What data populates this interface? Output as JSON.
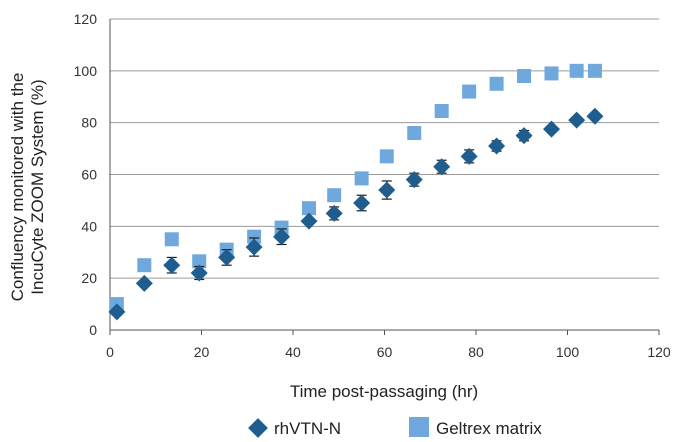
{
  "chart_data": {
    "type": "scatter",
    "xlabel": "Time post-passaging (hr)",
    "ylabel_lines": [
      "Confluency monitored with the",
      "IncuCyte ZOOM System (%)"
    ],
    "xlim": [
      0,
      120
    ],
    "ylim": [
      0,
      120
    ],
    "x_ticks": [
      "0",
      "20",
      "40",
      "60",
      "80",
      "100",
      "120"
    ],
    "y_ticks": [
      "0",
      "20",
      "40",
      "60",
      "80",
      "100",
      "120"
    ],
    "grid": "horizontal",
    "legend_position": "bottom",
    "series": [
      {
        "name": "rhVTN-N",
        "marker": "diamond",
        "color": "#1f5d8e",
        "x": [
          1.5,
          7.5,
          13.5,
          19.5,
          25.5,
          31.5,
          37.5,
          43.5,
          49,
          55,
          60.5,
          66.5,
          72.5,
          78.5,
          84.5,
          90.5,
          96.5,
          102,
          106
        ],
        "y": [
          7,
          18,
          25,
          22,
          28,
          32,
          36,
          42,
          45,
          49,
          54,
          58,
          63,
          67,
          71,
          75,
          77.5,
          81,
          82.5
        ],
        "error": [
          0,
          0,
          3,
          2.5,
          3,
          3.5,
          3,
          0,
          2.5,
          3,
          3.5,
          2.5,
          2.5,
          2.5,
          2,
          2,
          0,
          0,
          0
        ]
      },
      {
        "name": "Geltrex matrix",
        "marker": "square",
        "color": "#6fa8dc",
        "x": [
          1.5,
          7.5,
          13.5,
          19.5,
          25.5,
          31.5,
          37.5,
          43.5,
          49,
          55,
          60.5,
          66.5,
          72.5,
          78.5,
          84.5,
          90.5,
          96.5,
          102,
          106
        ],
        "y": [
          10,
          25,
          35,
          26.5,
          31,
          36,
          39.5,
          47,
          52,
          58.5,
          67,
          76,
          84.5,
          92,
          95,
          98,
          99,
          100,
          100
        ]
      }
    ]
  },
  "colors": {
    "grid": "#9a9a9a",
    "axis": "#555555",
    "error_bar": "#1a1a1a"
  }
}
